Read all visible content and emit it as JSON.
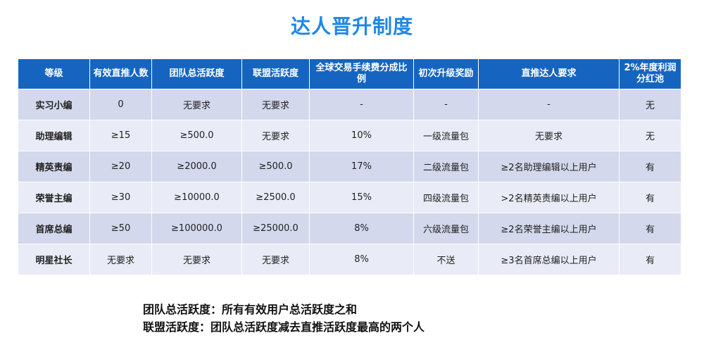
{
  "page": {
    "title": "达人晋升制度"
  },
  "table": {
    "headers": [
      "等级",
      "有效直推人数",
      "团队总活跃度",
      "联盟活跃度",
      "全球交易手续费分成比例",
      "初次升级奖励",
      "直推达人要求",
      "2%年度利润分红池"
    ],
    "rows": [
      [
        "实习小编",
        "0",
        "无要求",
        "无要求",
        "-",
        "-",
        "-",
        "无"
      ],
      [
        "助理编辑",
        "≥15",
        "≥500.0",
        "无要求",
        "10%",
        "一级流量包",
        "无要求",
        "无"
      ],
      [
        "精英责编",
        "≥20",
        "≥2000.0",
        "≥500.0",
        "17%",
        "二级流量包",
        "≥2名助理编辑以上用户",
        "有"
      ],
      [
        "荣誉主编",
        "≥30",
        "≥10000.0",
        "≥2500.0",
        "15%",
        "四级流量包",
        ">2名精英责编以上用户",
        "有"
      ],
      [
        "首席总编",
        "≥50",
        "≥100000.0",
        "≥25000.0",
        "8%",
        "六级流量包",
        "≥2名荣誉主编以上用户",
        "有"
      ],
      [
        "明星社长",
        "无要求",
        "无要求",
        "无要求",
        "8%",
        "不送",
        "≥3名首席总编以上用户",
        "有"
      ]
    ]
  },
  "notes": [
    "团队总活跃度：所有有效用户总活跃度之和",
    "联盟活跃度：团队总活跃度减去直推活跃度最高的两个人"
  ],
  "colors": {
    "title": "#1e88e5",
    "header_bg": "#1565c0",
    "row_odd": "#d3d8ec",
    "row_even": "#e9ecf6"
  }
}
